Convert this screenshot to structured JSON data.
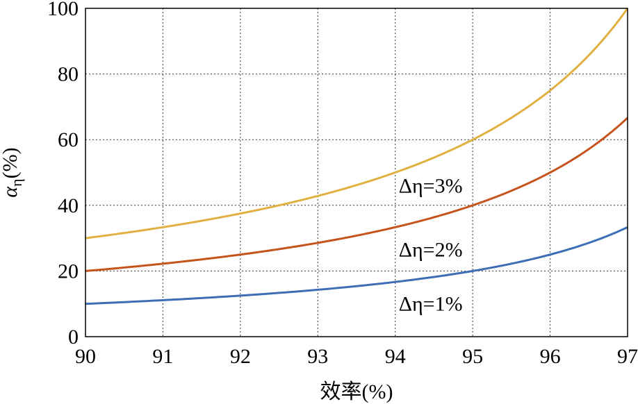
{
  "chart_data": {
    "type": "line",
    "xlabel": "效率(%)",
    "ylabel_main": "α",
    "ylabel_sub": "η",
    "ylabel_unit": "(%)",
    "xlim": [
      90,
      97
    ],
    "ylim": [
      0,
      100
    ],
    "xticks": [
      90,
      91,
      92,
      93,
      94,
      95,
      96,
      97
    ],
    "yticks": [
      0,
      20,
      40,
      60,
      80,
      100
    ],
    "grid": true,
    "x": [
      90,
      90.5,
      91,
      91.5,
      92,
      92.5,
      93,
      93.5,
      94,
      94.5,
      95,
      95.5,
      96,
      96.5,
      97
    ],
    "series": [
      {
        "name": "Δη=1%",
        "delta": 1,
        "color": "#3d6db5",
        "values": [
          10.0,
          10.5,
          11.1,
          11.8,
          12.5,
          13.3,
          14.3,
          15.4,
          16.7,
          18.2,
          20.0,
          22.2,
          25.0,
          28.6,
          33.3
        ]
      },
      {
        "name": "Δη=2%",
        "delta": 2,
        "color": "#c5531c",
        "values": [
          20.0,
          21.1,
          22.2,
          23.5,
          25.0,
          26.7,
          28.6,
          30.8,
          33.3,
          36.4,
          40.0,
          44.4,
          50.0,
          57.1,
          66.7
        ]
      },
      {
        "name": "Δη=3%",
        "delta": 3,
        "color": "#e0b040",
        "values": [
          30.0,
          31.6,
          33.3,
          35.3,
          37.5,
          40.0,
          42.9,
          46.2,
          50.0,
          54.5,
          60.0,
          66.7,
          75.0,
          85.7,
          100.0
        ]
      }
    ],
    "annotations": [
      {
        "text": "Δη=3%",
        "x": 94.0,
        "y": 46
      },
      {
        "text": "Δη=2%",
        "x": 94.0,
        "y": 26.5
      },
      {
        "text": "Δη=1%",
        "x": 94.0,
        "y": 10
      }
    ]
  }
}
